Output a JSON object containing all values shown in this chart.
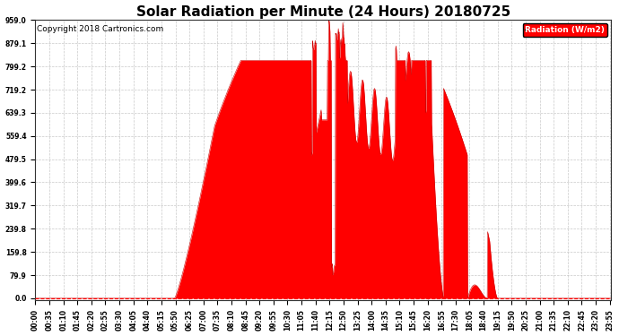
{
  "title": "Solar Radiation per Minute (24 Hours) 20180725",
  "copyright_text": "Copyright 2018 Cartronics.com",
  "legend_label": "Radiation (W/m2)",
  "yticks": [
    0.0,
    79.9,
    159.8,
    239.8,
    319.7,
    399.6,
    479.5,
    559.4,
    639.3,
    719.2,
    799.2,
    879.1,
    959.0
  ],
  "ymax": 959.0,
  "ymin": 0.0,
  "fill_color": "#FF0000",
  "line_color": "#CC0000",
  "background_color": "#FFFFFF",
  "grid_color": "#AAAAAA",
  "dashed_red_color": "#FF0000",
  "legend_bg": "#FF0000",
  "legend_text_color": "#FFFFFF",
  "title_fontsize": 11,
  "copyright_fontsize": 6.5,
  "tick_fontsize": 5.5,
  "num_minutes": 1440,
  "sunrise_minute": 348,
  "sunset_minute": 1155,
  "peak_value": 959.0,
  "tick_interval": 35
}
